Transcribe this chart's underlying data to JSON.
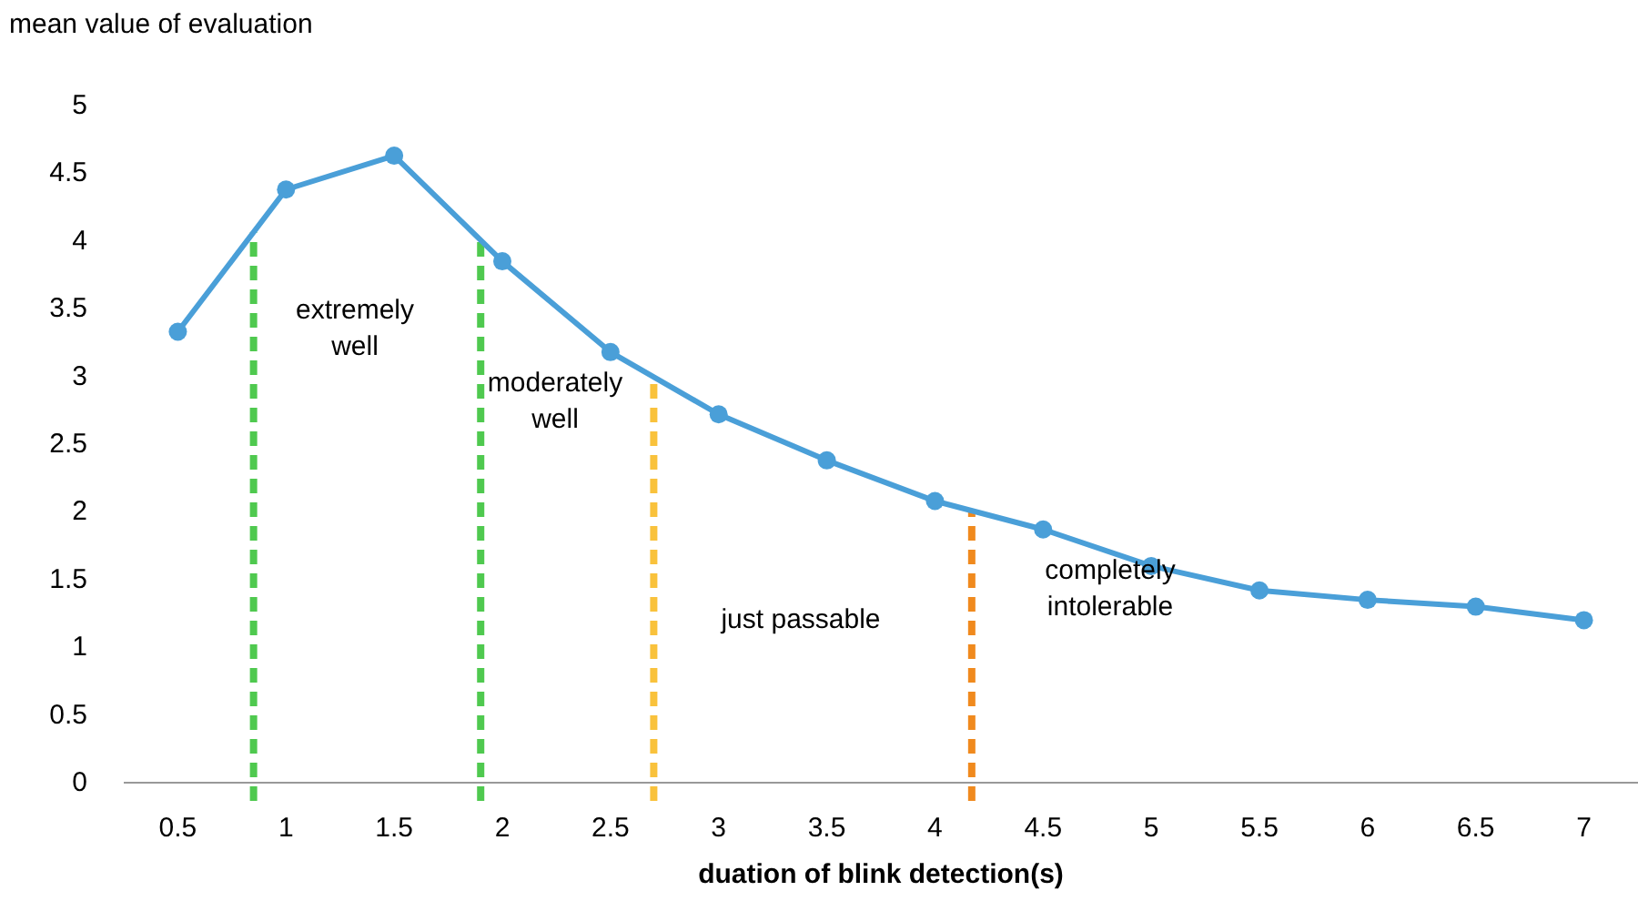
{
  "chart_data": {
    "type": "line",
    "ylabel": "mean value of evaluation",
    "xlabel": "duation of blink detection(s)",
    "x": [
      0.5,
      1,
      1.5,
      2,
      2.5,
      3,
      3.5,
      4,
      4.5,
      5,
      5.5,
      6,
      6.5,
      7
    ],
    "series": [
      {
        "color": "#4a9fd8",
        "values": [
          3.33,
          4.38,
          4.63,
          3.85,
          3.18,
          2.72,
          2.38,
          2.08,
          1.87,
          1.6,
          1.42,
          1.35,
          1.3,
          1.2
        ]
      }
    ],
    "xlim": [
      0.25,
      7.25
    ],
    "xticks": [
      0.5,
      1,
      1.5,
      2,
      2.5,
      3,
      3.5,
      4,
      4.5,
      5,
      5.5,
      6,
      6.5,
      7
    ],
    "ylim": [
      0,
      5
    ],
    "yticks": [
      0,
      0.5,
      1,
      1.5,
      2,
      2.5,
      3,
      3.5,
      4,
      4.5,
      5
    ],
    "marker": "circle",
    "line_style": "solid",
    "grid": false,
    "ref_lines": [
      {
        "axis": "x",
        "value": 0.85,
        "color": "#4fc94f",
        "line_style": "dashed"
      },
      {
        "axis": "x",
        "value": 1.9,
        "color": "#4fc94f",
        "line_style": "dashed"
      },
      {
        "axis": "x",
        "value": 2.7,
        "color": "#f9c23c",
        "line_style": "dashed"
      },
      {
        "axis": "x",
        "value": 4.17,
        "color": "#f08a1e",
        "line_style": "dashed"
      }
    ],
    "annotations": [
      "extremely\nwell",
      "moderately\nwell",
      "just passable",
      "completely\nintolerable"
    ]
  }
}
